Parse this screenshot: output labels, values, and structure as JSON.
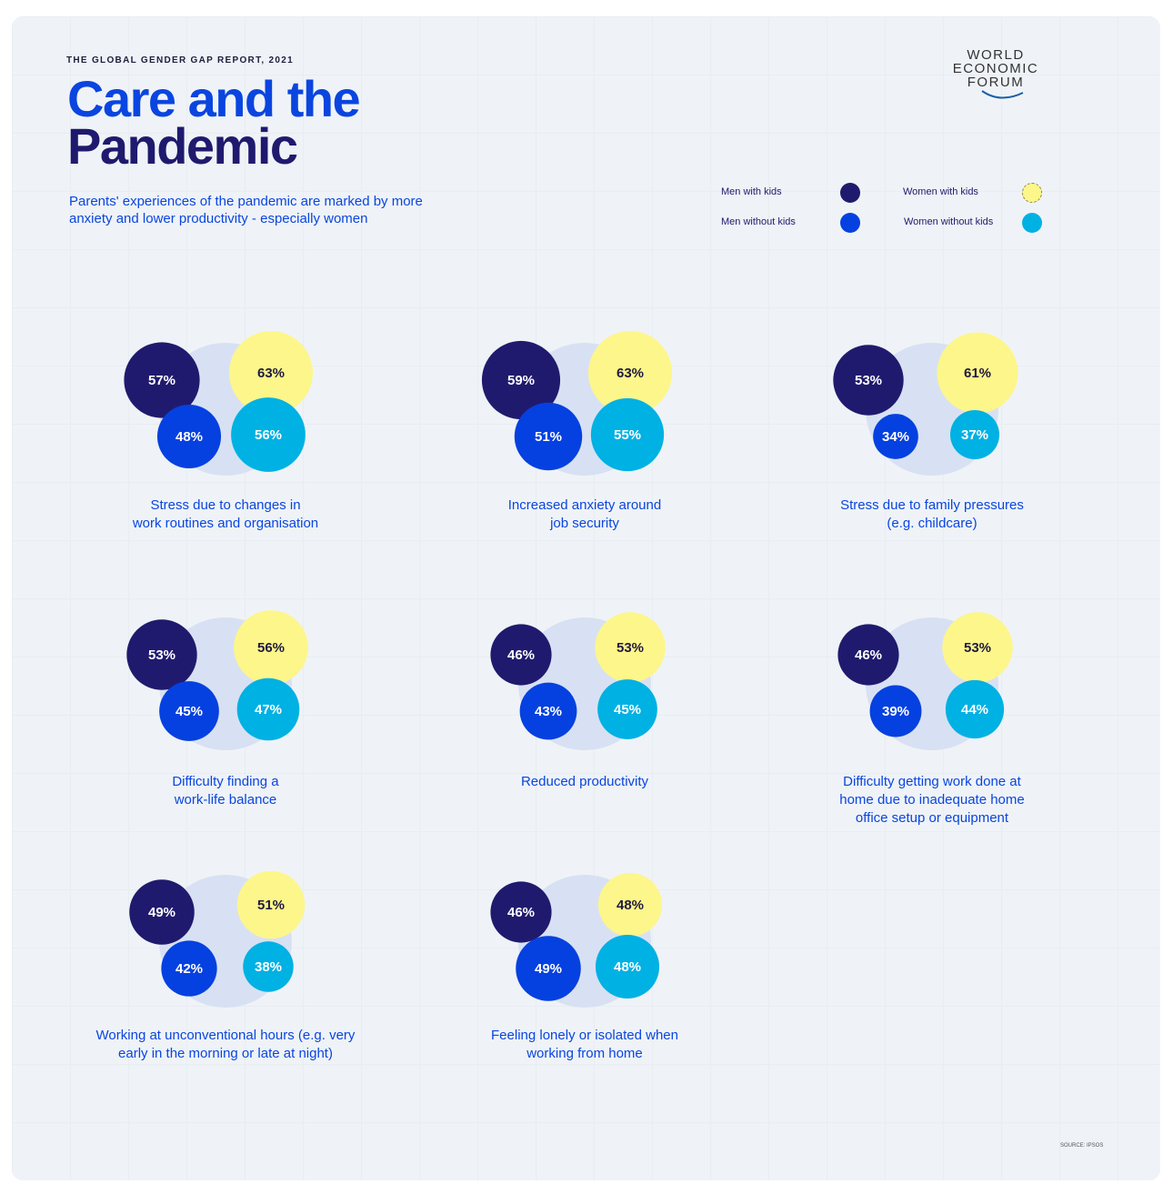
{
  "header": {
    "kicker": "THE GLOBAL GENDER GAP REPORT, 2021",
    "title_line1": "Care and the",
    "title_line2": "Pandemic",
    "subtitle": "Parents' experiences of the pandemic are marked by more anxiety and lower productivity - especially women",
    "logo": [
      "WORLD",
      "ECONOMIC",
      "FORUM"
    ]
  },
  "source": "SOURCE: IPSOS",
  "chart_data": {
    "type": "bubble",
    "title": "Care and the Pandemic",
    "legend": [
      {
        "name": "Men with kids",
        "color": "#201a6e"
      },
      {
        "name": "Women with kids",
        "color": "#fdf68a"
      },
      {
        "name": "Men without kids",
        "color": "#0541e0"
      },
      {
        "name": "Women without kids",
        "color": "#00b1e3"
      }
    ],
    "legend_placement": "top-right",
    "panels": [
      {
        "label": "Stress due to changes in\nwork routines and organisation",
        "men_with_kids": 57,
        "women_with_kids": 63,
        "men_without_kids": 48,
        "women_without_kids": 56
      },
      {
        "label": "Increased anxiety around\njob security",
        "men_with_kids": 59,
        "women_with_kids": 63,
        "men_without_kids": 51,
        "women_without_kids": 55
      },
      {
        "label": "Stress due to family pressures\n(e.g. childcare)",
        "men_with_kids": 53,
        "women_with_kids": 61,
        "men_without_kids": 34,
        "women_without_kids": 37
      },
      {
        "label": "Difficulty finding a\nwork-life balance",
        "men_with_kids": 53,
        "women_with_kids": 56,
        "men_without_kids": 45,
        "women_without_kids": 47
      },
      {
        "label": "Reduced productivity",
        "men_with_kids": 46,
        "women_with_kids": 53,
        "men_without_kids": 43,
        "women_without_kids": 45
      },
      {
        "label": "Difficulty getting work done at\nhome due to inadequate home\noffice setup or equipment",
        "men_with_kids": 46,
        "women_with_kids": 53,
        "men_without_kids": 39,
        "women_without_kids": 44
      },
      {
        "label": "Working at unconventional hours (e.g. very\nearly in the morning or late at night)",
        "men_with_kids": 49,
        "women_with_kids": 51,
        "men_without_kids": 42,
        "women_without_kids": 38
      },
      {
        "label": "Feeling lonely or isolated when\nworking from home",
        "men_with_kids": 46,
        "women_with_kids": 48,
        "men_without_kids": 49,
        "women_without_kids": 48
      }
    ]
  }
}
